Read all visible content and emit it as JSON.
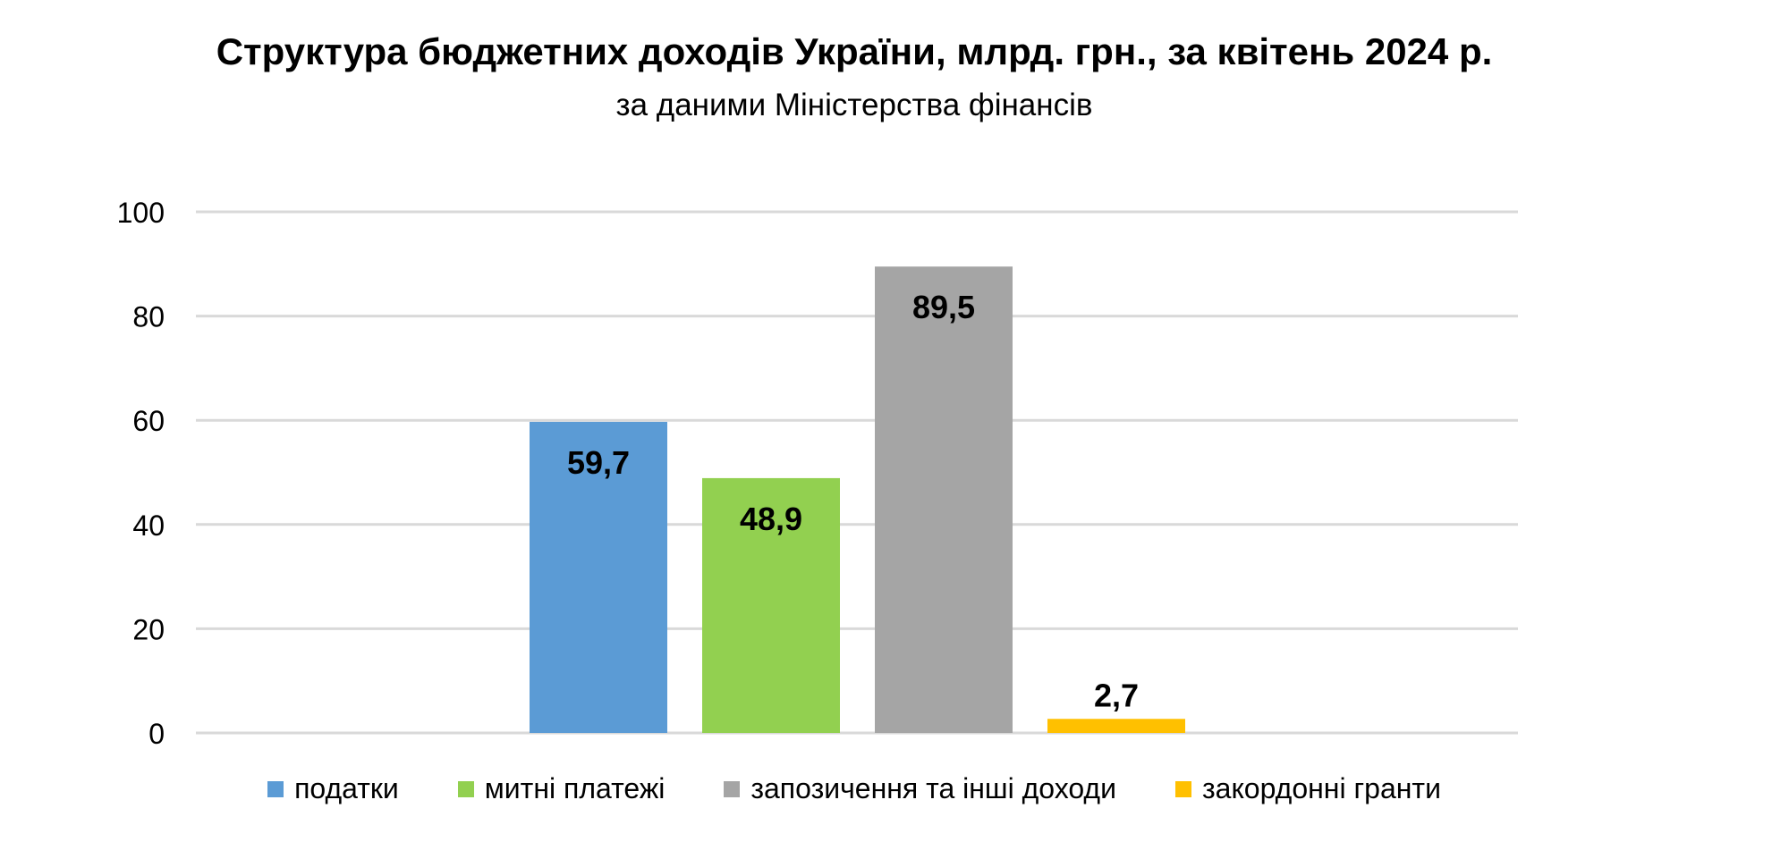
{
  "chart_data": {
    "type": "bar",
    "title": "Структура бюджетних доходів України, млрд. грн., за квітень 2024 р.",
    "subtitle": "за даними Міністерства фінансів",
    "categories": [
      "податки",
      "митні платежі",
      "запозичення та інші доходи",
      "закордонні гранти"
    ],
    "values": [
      59.7,
      48.9,
      89.5,
      2.7
    ],
    "data_labels": [
      "59,7",
      "48,9",
      "89,5",
      "2,7"
    ],
    "colors": [
      "#5b9bd5",
      "#92d050",
      "#a5a5a5",
      "#ffc000"
    ],
    "ylim": [
      0,
      100
    ],
    "yticks": [
      0,
      20,
      40,
      60,
      80,
      100
    ],
    "grid": true,
    "legend_position": "bottom"
  }
}
